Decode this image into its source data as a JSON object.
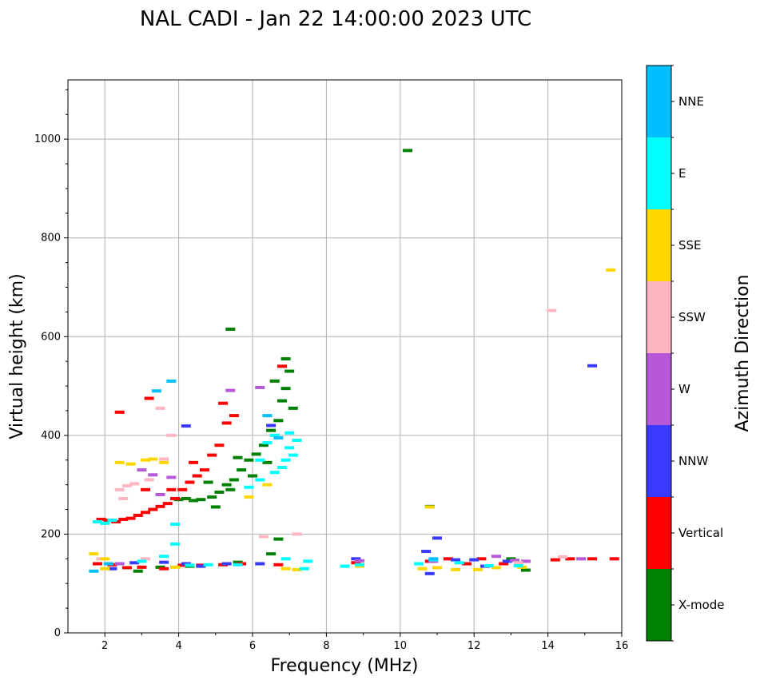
{
  "chart_data": {
    "type": "scatter",
    "title": "NAL CADI - Jan 22 14:00:00 2023 UTC",
    "xlabel": "Frequency (MHz)",
    "ylabel": "Virtual height (km)",
    "xlim": [
      1,
      16
    ],
    "ylim": [
      0,
      1120
    ],
    "xticks": [
      2,
      4,
      6,
      8,
      10,
      12,
      14,
      16
    ],
    "yticks": [
      0,
      200,
      400,
      600,
      800,
      1000
    ],
    "grid": true,
    "colorbar": {
      "label": "Azimuth Direction",
      "categories": [
        {
          "name": "X-mode",
          "color": "#008000"
        },
        {
          "name": "Vertical",
          "color": "#ff0000"
        },
        {
          "name": "NNW",
          "color": "#3a3aff"
        },
        {
          "name": "W",
          "color": "#b658d8"
        },
        {
          "name": "SSW",
          "color": "#ffb6c1"
        },
        {
          "name": "SSE",
          "color": "#ffd700"
        },
        {
          "name": "E",
          "color": "#00ffff"
        },
        {
          "name": "NNE",
          "color": "#00bfff"
        }
      ]
    },
    "series": [
      {
        "name": "X-mode",
        "points": [
          [
            4.0,
            270
          ],
          [
            4.2,
            272
          ],
          [
            4.4,
            268
          ],
          [
            4.6,
            270
          ],
          [
            4.9,
            275
          ],
          [
            5.1,
            285
          ],
          [
            5.3,
            300
          ],
          [
            5.5,
            310
          ],
          [
            5.7,
            330
          ],
          [
            5.9,
            350
          ],
          [
            6.1,
            362
          ],
          [
            6.3,
            380
          ],
          [
            6.5,
            410
          ],
          [
            6.7,
            430
          ],
          [
            6.8,
            470
          ],
          [
            6.9,
            495
          ],
          [
            7.0,
            530
          ],
          [
            7.1,
            455
          ],
          [
            6.6,
            510
          ],
          [
            6.9,
            555
          ],
          [
            5.4,
            615
          ],
          [
            5.0,
            255
          ],
          [
            5.4,
            290
          ],
          [
            4.8,
            305
          ],
          [
            5.6,
            355
          ],
          [
            6.0,
            318
          ],
          [
            6.4,
            345
          ],
          [
            2.9,
            125
          ],
          [
            3.5,
            133
          ],
          [
            4.3,
            135
          ],
          [
            5.6,
            143
          ],
          [
            6.5,
            160
          ],
          [
            6.7,
            190
          ],
          [
            10.2,
            977
          ],
          [
            10.8,
            256
          ],
          [
            13.0,
            150
          ],
          [
            13.4,
            127
          ]
        ]
      },
      {
        "name": "Vertical",
        "points": [
          [
            1.9,
            230
          ],
          [
            2.1,
            228
          ],
          [
            2.3,
            225
          ],
          [
            2.5,
            230
          ],
          [
            2.7,
            232
          ],
          [
            2.9,
            238
          ],
          [
            3.1,
            244
          ],
          [
            3.3,
            250
          ],
          [
            3.5,
            256
          ],
          [
            3.7,
            262
          ],
          [
            3.9,
            272
          ],
          [
            4.1,
            290
          ],
          [
            4.3,
            305
          ],
          [
            4.5,
            318
          ],
          [
            4.7,
            330
          ],
          [
            4.9,
            360
          ],
          [
            5.1,
            380
          ],
          [
            5.3,
            425
          ],
          [
            5.5,
            440
          ],
          [
            3.2,
            475
          ],
          [
            2.4,
            447
          ],
          [
            6.8,
            540
          ],
          [
            5.2,
            465
          ],
          [
            3.1,
            290
          ],
          [
            3.8,
            290
          ],
          [
            4.4,
            345
          ],
          [
            1.8,
            140
          ],
          [
            2.2,
            138
          ],
          [
            2.6,
            132
          ],
          [
            3.0,
            133
          ],
          [
            3.6,
            130
          ],
          [
            4.1,
            137
          ],
          [
            4.6,
            137
          ],
          [
            5.2,
            138
          ],
          [
            5.7,
            140
          ],
          [
            6.7,
            138
          ],
          [
            8.8,
            142
          ],
          [
            10.8,
            145
          ],
          [
            11.3,
            150
          ],
          [
            12.2,
            150
          ],
          [
            12.8,
            140
          ],
          [
            14.2,
            148
          ],
          [
            14.6,
            150
          ],
          [
            15.2,
            150
          ],
          [
            15.8,
            150
          ],
          [
            11.8,
            140
          ]
        ]
      },
      {
        "name": "NNW",
        "points": [
          [
            2.2,
            130
          ],
          [
            2.8,
            142
          ],
          [
            3.6,
            143
          ],
          [
            4.2,
            140
          ],
          [
            4.6,
            135
          ],
          [
            5.3,
            140
          ],
          [
            6.2,
            140
          ],
          [
            8.8,
            150
          ],
          [
            10.7,
            165
          ],
          [
            11.0,
            192
          ],
          [
            11.5,
            148
          ],
          [
            12.3,
            135
          ],
          [
            12.9,
            145
          ],
          [
            15.2,
            541
          ],
          [
            4.2,
            419
          ],
          [
            6.5,
            420
          ],
          [
            10.8,
            120
          ],
          [
            12.0,
            148
          ]
        ]
      },
      {
        "name": "W",
        "points": [
          [
            2.4,
            140
          ],
          [
            3.0,
            330
          ],
          [
            3.3,
            320
          ],
          [
            3.8,
            315
          ],
          [
            5.4,
            491
          ],
          [
            6.2,
            497
          ],
          [
            8.9,
            146
          ],
          [
            10.9,
            145
          ],
          [
            12.6,
            155
          ],
          [
            13.1,
            147
          ],
          [
            14.9,
            150
          ],
          [
            13.4,
            145
          ],
          [
            3.5,
            280
          ]
        ]
      },
      {
        "name": "SSW",
        "points": [
          [
            1.9,
            150
          ],
          [
            2.4,
            290
          ],
          [
            2.6,
            298
          ],
          [
            2.8,
            302
          ],
          [
            3.2,
            310
          ],
          [
            3.6,
            352
          ],
          [
            3.5,
            455
          ],
          [
            3.8,
            400
          ],
          [
            6.3,
            195
          ],
          [
            7.2,
            200
          ],
          [
            14.1,
            653
          ],
          [
            14.4,
            154
          ],
          [
            13.2,
            142
          ],
          [
            2.5,
            272
          ],
          [
            3.1,
            150
          ]
        ]
      },
      {
        "name": "SSE",
        "points": [
          [
            1.7,
            160
          ],
          [
            2.0,
            150
          ],
          [
            2.4,
            345
          ],
          [
            2.7,
            342
          ],
          [
            3.1,
            350
          ],
          [
            3.3,
            352
          ],
          [
            3.6,
            345
          ],
          [
            5.9,
            275
          ],
          [
            6.4,
            300
          ],
          [
            6.9,
            130
          ],
          [
            7.2,
            128
          ],
          [
            8.9,
            135
          ],
          [
            10.6,
            130
          ],
          [
            11.0,
            132
          ],
          [
            11.5,
            128
          ],
          [
            12.1,
            128
          ],
          [
            12.6,
            132
          ],
          [
            13.3,
            133
          ],
          [
            15.7,
            735
          ],
          [
            10.8,
            255
          ],
          [
            3.9,
            133
          ],
          [
            2.0,
            130
          ]
        ]
      },
      {
        "name": "E",
        "points": [
          [
            1.8,
            225
          ],
          [
            2.0,
            222
          ],
          [
            2.2,
            228
          ],
          [
            3.0,
            145
          ],
          [
            3.6,
            155
          ],
          [
            3.9,
            180
          ],
          [
            4.3,
            137
          ],
          [
            4.8,
            138
          ],
          [
            5.6,
            138
          ],
          [
            6.2,
            310
          ],
          [
            6.6,
            325
          ],
          [
            6.8,
            335
          ],
          [
            6.9,
            350
          ],
          [
            7.1,
            360
          ],
          [
            7.0,
            375
          ],
          [
            7.2,
            390
          ],
          [
            7.0,
            405
          ],
          [
            6.4,
            385
          ],
          [
            6.6,
            400
          ],
          [
            6.9,
            150
          ],
          [
            7.5,
            145
          ],
          [
            7.4,
            130
          ],
          [
            8.5,
            135
          ],
          [
            8.9,
            138
          ],
          [
            10.5,
            140
          ],
          [
            10.9,
            148
          ],
          [
            11.6,
            142
          ],
          [
            12.4,
            136
          ],
          [
            13.2,
            136
          ],
          [
            3.9,
            220
          ],
          [
            6.2,
            350
          ],
          [
            5.9,
            295
          ]
        ]
      },
      {
        "name": "NNE",
        "points": [
          [
            3.4,
            490
          ],
          [
            3.8,
            510
          ],
          [
            6.7,
            395
          ],
          [
            2.1,
            140
          ],
          [
            10.9,
            150
          ],
          [
            6.4,
            440
          ],
          [
            1.7,
            125
          ]
        ]
      }
    ]
  }
}
